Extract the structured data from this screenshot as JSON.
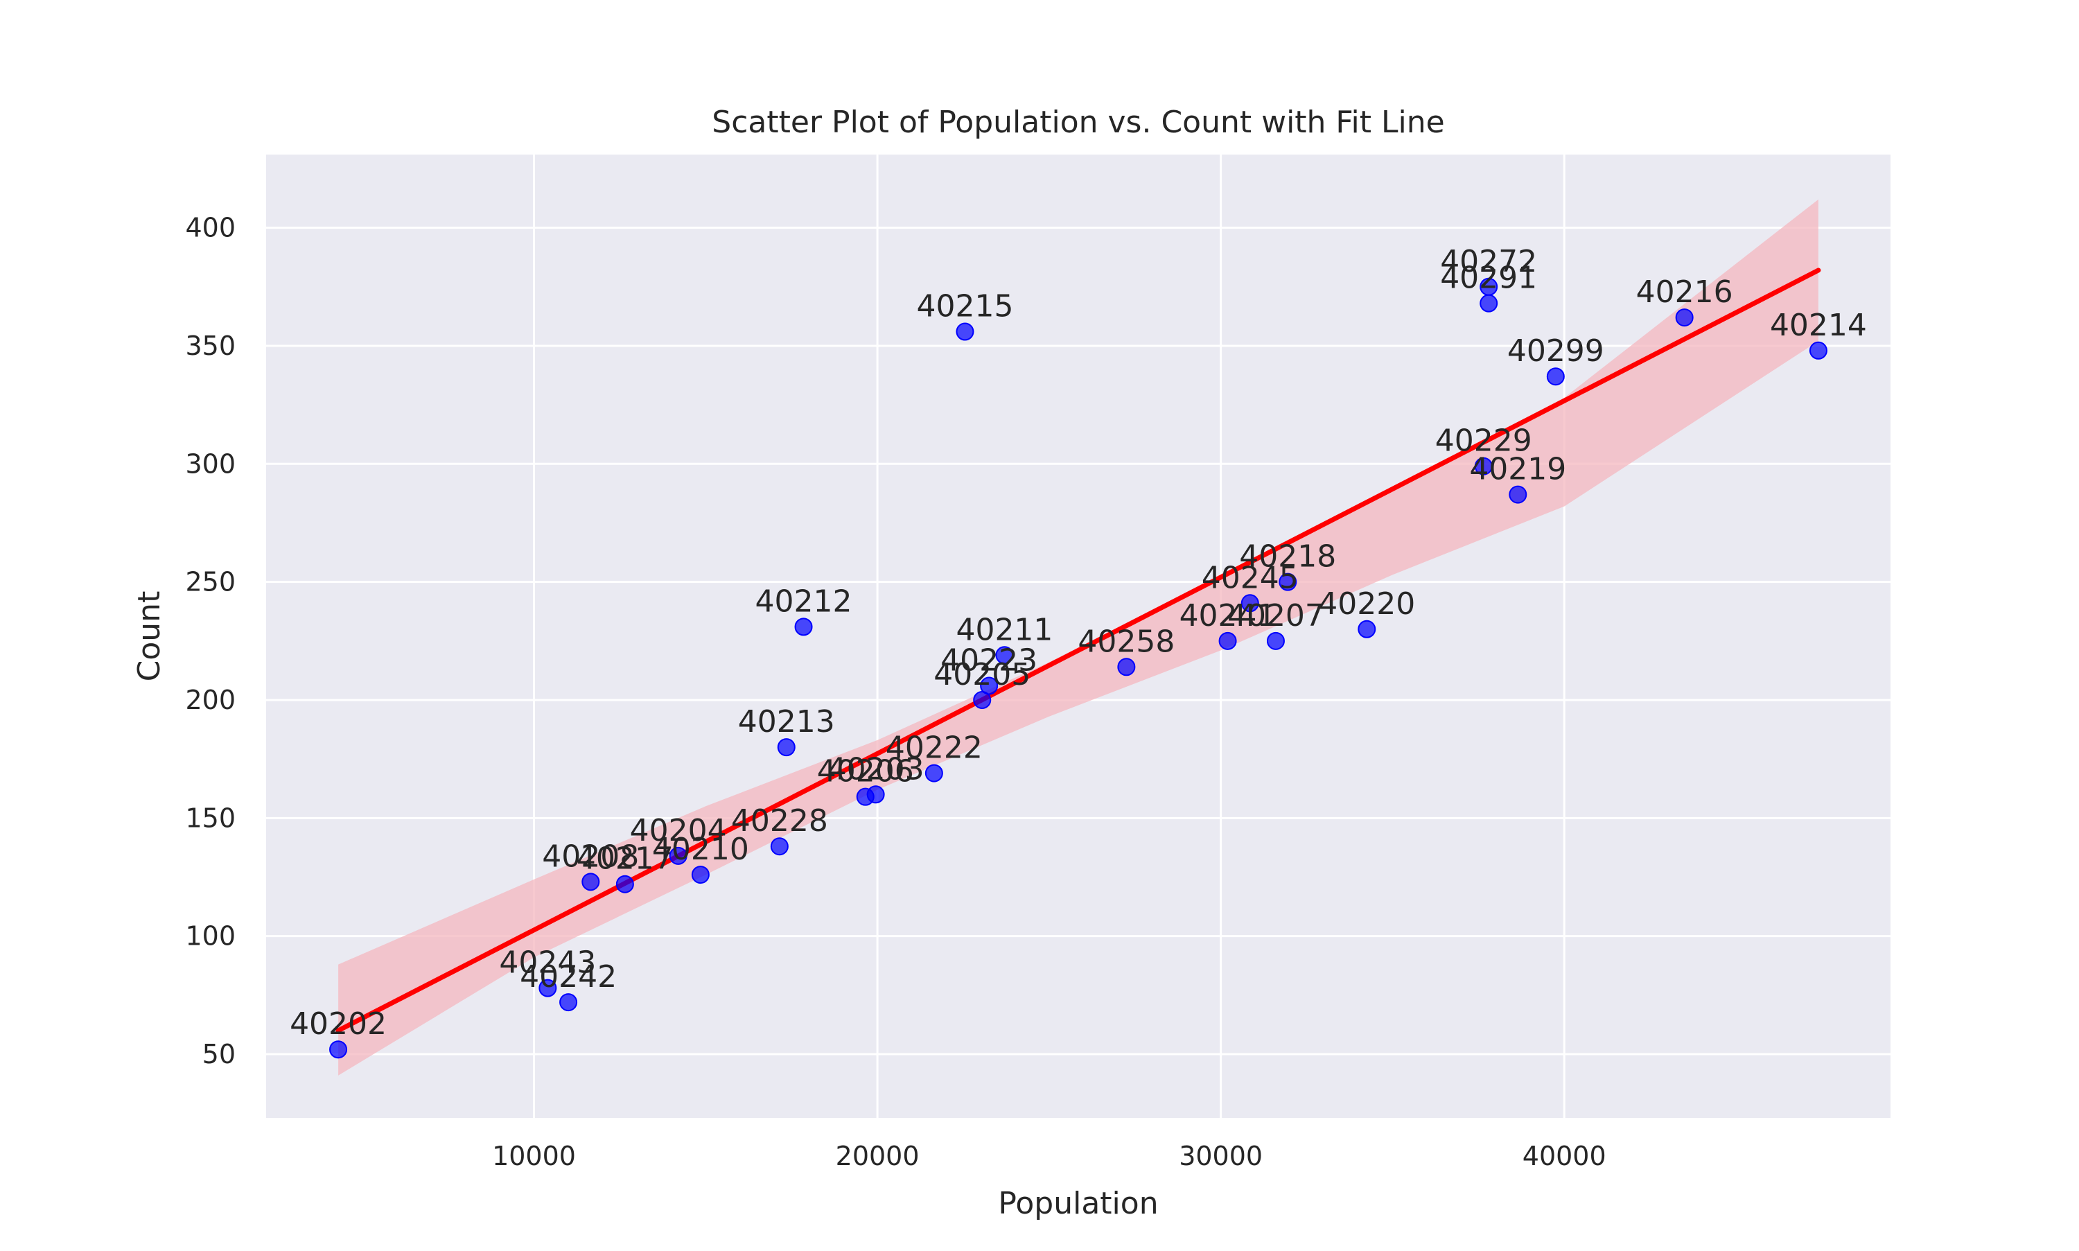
{
  "chart_data": {
    "type": "scatter",
    "title": "Scatter Plot of Population vs. Count with Fit Line",
    "xlabel": "Population",
    "ylabel": "Count",
    "xlim": [
      2200,
      49500
    ],
    "ylim": [
      23,
      431
    ],
    "xticks": [
      10000,
      20000,
      30000,
      40000
    ],
    "yticks": [
      50,
      100,
      150,
      200,
      250,
      300,
      350,
      400
    ],
    "grid": true,
    "colors": {
      "plot_background": "#eaeaf2",
      "grid": "#ffffff",
      "points": "#0000ff",
      "fit_line": "#ff0000",
      "confidence_band": "#f4b7bf"
    },
    "points": [
      {
        "label": "40202",
        "x": 4300,
        "y": 52
      },
      {
        "label": "40243",
        "x": 10400,
        "y": 78
      },
      {
        "label": "40242",
        "x": 11000,
        "y": 72
      },
      {
        "label": "40208",
        "x": 11650,
        "y": 123
      },
      {
        "label": "40217",
        "x": 12650,
        "y": 122
      },
      {
        "label": "40204",
        "x": 14200,
        "y": 134
      },
      {
        "label": "40210",
        "x": 14850,
        "y": 126
      },
      {
        "label": "40228",
        "x": 17150,
        "y": 138
      },
      {
        "label": "40213",
        "x": 17350,
        "y": 180
      },
      {
        "label": "40212",
        "x": 17850,
        "y": 231
      },
      {
        "label": "40206",
        "x": 19650,
        "y": 159
      },
      {
        "label": "40203",
        "x": 19950,
        "y": 160
      },
      {
        "label": "40222",
        "x": 21650,
        "y": 169
      },
      {
        "label": "40215",
        "x": 22550,
        "y": 356
      },
      {
        "label": "40205",
        "x": 23050,
        "y": 200
      },
      {
        "label": "40223",
        "x": 23250,
        "y": 206
      },
      {
        "label": "40211",
        "x": 23700,
        "y": 219
      },
      {
        "label": "40258",
        "x": 27250,
        "y": 214
      },
      {
        "label": "40241",
        "x": 30200,
        "y": 225
      },
      {
        "label": "40245",
        "x": 30850,
        "y": 241
      },
      {
        "label": "40207",
        "x": 31600,
        "y": 225
      },
      {
        "label": "40218",
        "x": 31950,
        "y": 250
      },
      {
        "label": "40220",
        "x": 34250,
        "y": 230
      },
      {
        "label": "40229",
        "x": 37650,
        "y": 299
      },
      {
        "label": "40272",
        "x": 37800,
        "y": 375
      },
      {
        "label": "40291",
        "x": 37800,
        "y": 368
      },
      {
        "label": "40219",
        "x": 38650,
        "y": 287
      },
      {
        "label": "40299",
        "x": 39750,
        "y": 337
      },
      {
        "label": "40216",
        "x": 43500,
        "y": 362
      },
      {
        "label": "40214",
        "x": 47400,
        "y": 348
      }
    ],
    "fit_line": {
      "x": [
        4300,
        47400
      ],
      "y": [
        60,
        382
      ]
    },
    "confidence_band": {
      "x": [
        4300,
        10000,
        15000,
        20000,
        25000,
        30000,
        35000,
        40000,
        47400
      ],
      "upper": [
        88,
        124,
        155,
        183,
        216,
        253,
        290,
        328,
        412
      ],
      "lower": [
        41,
        91,
        126,
        162,
        193,
        221,
        253,
        282,
        352
      ]
    }
  }
}
